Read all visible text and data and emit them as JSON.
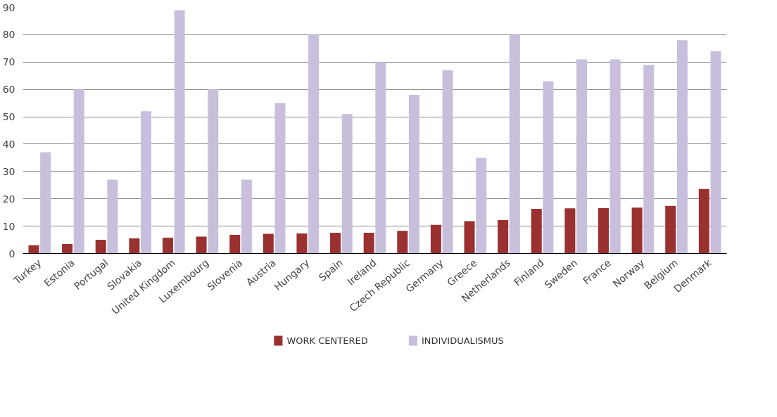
{
  "chart_data": {
    "type": "bar",
    "categories": [
      "Turkey",
      "Estonia",
      "Portugal",
      "Slovakia",
      "United Kingdom",
      "Luxembourg",
      "Slovenia",
      "Austria",
      "Hungary",
      "Spain",
      "Ireland",
      "Czech Republic",
      "Germany",
      "Greece",
      "Netherlands",
      "Finland",
      "Sweden",
      "France",
      "Norway",
      "Belgium",
      "Denmark"
    ],
    "series": [
      {
        "name": "WORK CENTERED",
        "color": "#9b3030",
        "values": [
          3,
          3.5,
          5,
          5.5,
          5.8,
          6.2,
          6.8,
          7.2,
          7.3,
          7.6,
          7.6,
          8.3,
          10.5,
          11.8,
          12.2,
          16.3,
          16.5,
          16.6,
          16.8,
          17.4,
          23.6
        ]
      },
      {
        "name": "INDIVIDUALISMUS",
        "color": "#c8bfdc",
        "values": [
          37,
          60,
          27,
          52,
          89,
          60,
          27,
          55,
          80,
          51,
          70,
          58,
          67,
          35,
          80,
          63,
          71,
          71,
          69,
          78,
          74
        ]
      }
    ],
    "ylim": [
      0,
      90
    ],
    "yticks": [
      0,
      10,
      20,
      30,
      40,
      50,
      60,
      70,
      80,
      90
    ],
    "grid": "y",
    "legend": "bottom"
  }
}
